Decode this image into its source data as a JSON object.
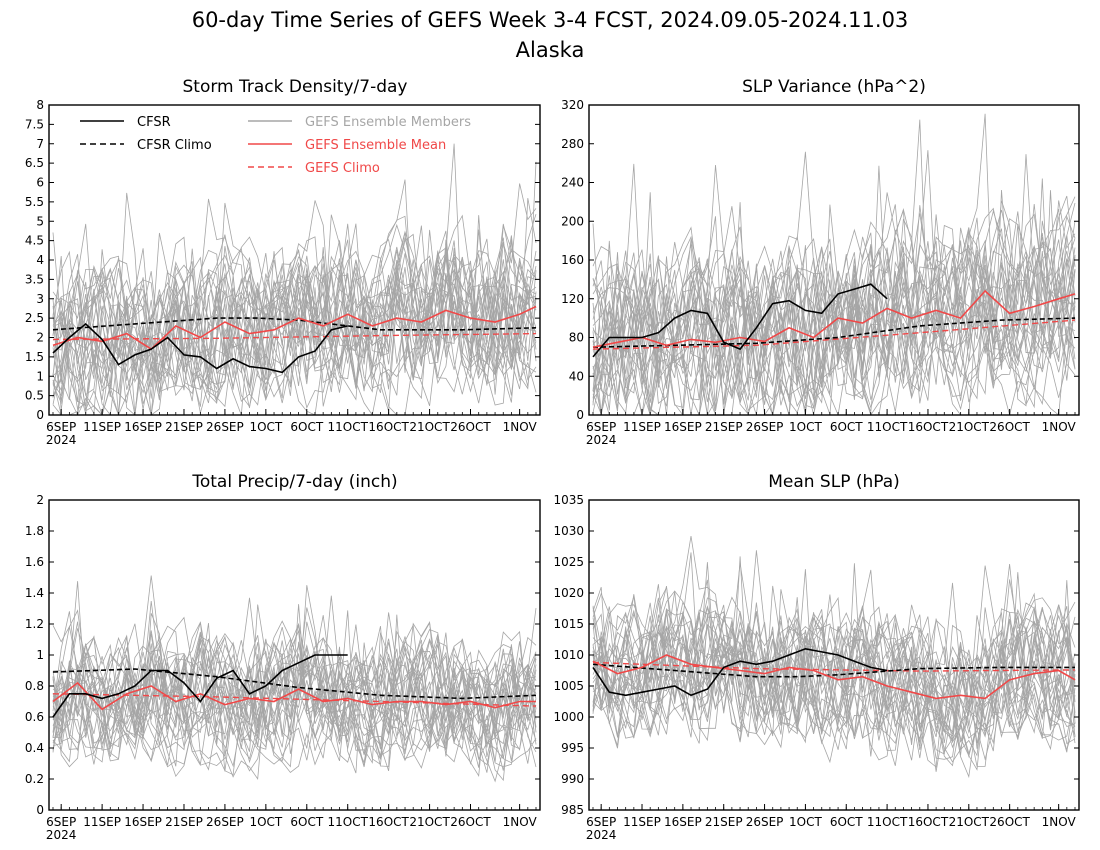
{
  "title": "60-day Time Series of GEFS Week 3-4 FCST, 2024.09.05-2024.11.03",
  "subtitle": "Alaska",
  "colors": {
    "cfsr": "#000000",
    "members": "#a6a6a6",
    "gefs_mean": "#f04848",
    "gefs_climo": "#f04848"
  },
  "legend": {
    "cfsr": "CFSR",
    "cfsr_climo": "CFSR Climo",
    "members": "GEFS Ensemble Members",
    "gefs_mean": "GEFS Ensemble Mean",
    "gefs_climo": "GEFS Climo"
  },
  "x_ticks": [
    "6SEP",
    "11SEP",
    "16SEP",
    "21SEP",
    "26SEP",
    "1OCT",
    "6OCT",
    "11OCT",
    "16OCT",
    "21OCT",
    "26OCT",
    "1NOV"
  ],
  "x_year": "2024",
  "chart_data": [
    {
      "type": "line",
      "title": "Storm Track Density/7-day",
      "x": "day index 0-59 (5 SEP - 3 NOV 2024)",
      "ylim": [
        0,
        8
      ],
      "yticks": [
        "0",
        "0.5",
        "1",
        "1.5",
        "2",
        "2.5",
        "3",
        "3.5",
        "4",
        "4.5",
        "5",
        "5.5",
        "6",
        "6.5",
        "7",
        "7.5",
        "8"
      ],
      "yvals": [
        0,
        0.5,
        1,
        1.5,
        2,
        2.5,
        3,
        3.5,
        4,
        4.5,
        5,
        5.5,
        6,
        6.5,
        7,
        7.5,
        8
      ],
      "members_range": [
        0.5,
        4.5
      ],
      "series": [
        {
          "name": "CFSR",
          "x": [
            0,
            2,
            4,
            6,
            8,
            10,
            12,
            14,
            16,
            18,
            20,
            22,
            24,
            26,
            28,
            30,
            32,
            34,
            36
          ],
          "values": [
            1.6,
            2.0,
            2.35,
            1.95,
            1.3,
            1.55,
            1.7,
            2.0,
            1.55,
            1.5,
            1.2,
            1.45,
            1.25,
            1.2,
            1.1,
            1.5,
            1.65,
            2.2,
            2.3
          ]
        },
        {
          "name": "CFSR Climo",
          "x": [
            0,
            10,
            20,
            25,
            30,
            40,
            50,
            59
          ],
          "values": [
            2.2,
            2.35,
            2.5,
            2.5,
            2.45,
            2.2,
            2.2,
            2.25
          ]
        },
        {
          "name": "GEFS Ensemble Mean",
          "x": [
            0,
            3,
            6,
            9,
            12,
            15,
            18,
            21,
            24,
            27,
            30,
            33,
            36,
            39,
            42,
            45,
            48,
            51,
            54,
            57,
            59
          ],
          "values": [
            1.8,
            2.0,
            1.9,
            2.1,
            1.7,
            2.3,
            2.0,
            2.4,
            2.1,
            2.2,
            2.5,
            2.3,
            2.6,
            2.3,
            2.5,
            2.4,
            2.7,
            2.5,
            2.4,
            2.6,
            2.8
          ]
        },
        {
          "name": "GEFS Climo",
          "x": [
            0,
            20,
            40,
            59
          ],
          "values": [
            1.95,
            1.98,
            2.05,
            2.1
          ]
        }
      ]
    },
    {
      "type": "line",
      "title": "SLP Variance (hPa^2)",
      "x": "day index 0-59 (5 SEP - 3 NOV 2024)",
      "ylim": [
        0,
        320
      ],
      "yticks": [
        "0",
        "40",
        "80",
        "120",
        "160",
        "200",
        "240",
        "280",
        "320"
      ],
      "yvals": [
        0,
        40,
        80,
        120,
        160,
        200,
        240,
        280,
        320
      ],
      "members_range": [
        40,
        220
      ],
      "series": [
        {
          "name": "CFSR",
          "x": [
            0,
            2,
            4,
            6,
            8,
            10,
            12,
            14,
            16,
            18,
            20,
            22,
            24,
            26,
            28,
            30,
            32,
            34,
            36
          ],
          "values": [
            60,
            80,
            80,
            80,
            85,
            100,
            108,
            105,
            75,
            68,
            90,
            115,
            118,
            108,
            105,
            125,
            130,
            135,
            120
          ]
        },
        {
          "name": "CFSR Climo",
          "x": [
            0,
            10,
            20,
            30,
            40,
            50,
            59
          ],
          "values": [
            70,
            72,
            74,
            80,
            92,
            98,
            100
          ]
        },
        {
          "name": "GEFS Ensemble Mean",
          "x": [
            0,
            3,
            6,
            9,
            12,
            15,
            18,
            21,
            24,
            27,
            30,
            33,
            36,
            39,
            42,
            45,
            48,
            51,
            54,
            57,
            59
          ],
          "values": [
            70,
            75,
            80,
            72,
            78,
            75,
            80,
            76,
            90,
            80,
            100,
            95,
            110,
            100,
            108,
            100,
            128,
            105,
            112,
            120,
            125
          ]
        },
        {
          "name": "GEFS Climo",
          "x": [
            0,
            20,
            40,
            59
          ],
          "values": [
            68,
            72,
            85,
            98
          ]
        }
      ]
    },
    {
      "type": "line",
      "title": "Total Precip/7-day (inch)",
      "x": "day index 0-59 (5 SEP - 3 NOV 2024)",
      "ylim": [
        0,
        2
      ],
      "yticks": [
        "0",
        "0.2",
        "0.4",
        "0.6",
        "0.8",
        "1",
        "1.2",
        "1.4",
        "1.6",
        "1.8",
        "2"
      ],
      "yvals": [
        0,
        0.2,
        0.4,
        0.6,
        0.8,
        1,
        1.2,
        1.4,
        1.6,
        1.8,
        2
      ],
      "members_range": [
        0.35,
        1.15
      ],
      "series": [
        {
          "name": "CFSR",
          "x": [
            0,
            2,
            4,
            6,
            8,
            10,
            12,
            14,
            16,
            18,
            20,
            22,
            24,
            26,
            28,
            30,
            32,
            34,
            36
          ],
          "values": [
            0.6,
            0.75,
            0.75,
            0.72,
            0.75,
            0.8,
            0.9,
            0.9,
            0.82,
            0.7,
            0.85,
            0.9,
            0.75,
            0.8,
            0.9,
            0.95,
            1.0,
            1.0,
            1.0
          ]
        },
        {
          "name": "CFSR Climo",
          "x": [
            0,
            10,
            20,
            30,
            40,
            50,
            59
          ],
          "values": [
            0.89,
            0.91,
            0.86,
            0.79,
            0.74,
            0.72,
            0.74
          ]
        },
        {
          "name": "GEFS Ensemble Mean",
          "x": [
            0,
            3,
            6,
            9,
            12,
            15,
            18,
            21,
            24,
            27,
            30,
            33,
            36,
            39,
            42,
            45,
            48,
            51,
            54,
            57,
            59
          ],
          "values": [
            0.7,
            0.82,
            0.65,
            0.75,
            0.8,
            0.7,
            0.75,
            0.68,
            0.72,
            0.7,
            0.78,
            0.7,
            0.72,
            0.68,
            0.7,
            0.7,
            0.68,
            0.7,
            0.66,
            0.7,
            0.7
          ]
        },
        {
          "name": "GEFS Climo",
          "x": [
            0,
            20,
            40,
            59
          ],
          "values": [
            0.75,
            0.73,
            0.7,
            0.67
          ]
        }
      ]
    },
    {
      "type": "line",
      "title": "Mean SLP (hPa)",
      "x": "day index 0-59 (5 SEP - 3 NOV 2024)",
      "ylim": [
        985,
        1035
      ],
      "yticks": [
        "985",
        "990",
        "995",
        "1000",
        "1005",
        "1010",
        "1015",
        "1020",
        "1025",
        "1030",
        "1035"
      ],
      "yvals": [
        985,
        990,
        995,
        1000,
        1005,
        1010,
        1015,
        1020,
        1025,
        1030,
        1035
      ],
      "members_range": [
        996,
        1018
      ],
      "series": [
        {
          "name": "CFSR",
          "x": [
            0,
            2,
            4,
            6,
            8,
            10,
            12,
            14,
            16,
            18,
            20,
            22,
            24,
            26,
            28,
            30,
            32,
            34,
            36
          ],
          "values": [
            1008,
            1004,
            1003.5,
            1004,
            1004.5,
            1005,
            1003.5,
            1004.5,
            1008,
            1009,
            1008.5,
            1009,
            1010,
            1011,
            1010.5,
            1010,
            1009,
            1008,
            1007.5
          ]
        },
        {
          "name": "CFSR Climo",
          "x": [
            0,
            10,
            20,
            25,
            30,
            40,
            50,
            59
          ],
          "values": [
            1008.5,
            1007.5,
            1006.5,
            1006.5,
            1006.8,
            1007.8,
            1008,
            1008
          ]
        },
        {
          "name": "GEFS Ensemble Mean",
          "x": [
            0,
            3,
            6,
            9,
            12,
            15,
            18,
            21,
            24,
            27,
            30,
            33,
            36,
            39,
            42,
            45,
            48,
            51,
            54,
            57,
            59
          ],
          "values": [
            1009,
            1007,
            1008,
            1010,
            1008.5,
            1008,
            1007.5,
            1007,
            1008,
            1007.5,
            1006,
            1006.5,
            1005,
            1004,
            1003,
            1003.5,
            1003,
            1006,
            1007,
            1007.5,
            1006
          ]
        },
        {
          "name": "GEFS Climo",
          "x": [
            0,
            20,
            40,
            59
          ],
          "values": [
            1008.8,
            1007.8,
            1007.4,
            1007.6
          ]
        }
      ]
    }
  ]
}
